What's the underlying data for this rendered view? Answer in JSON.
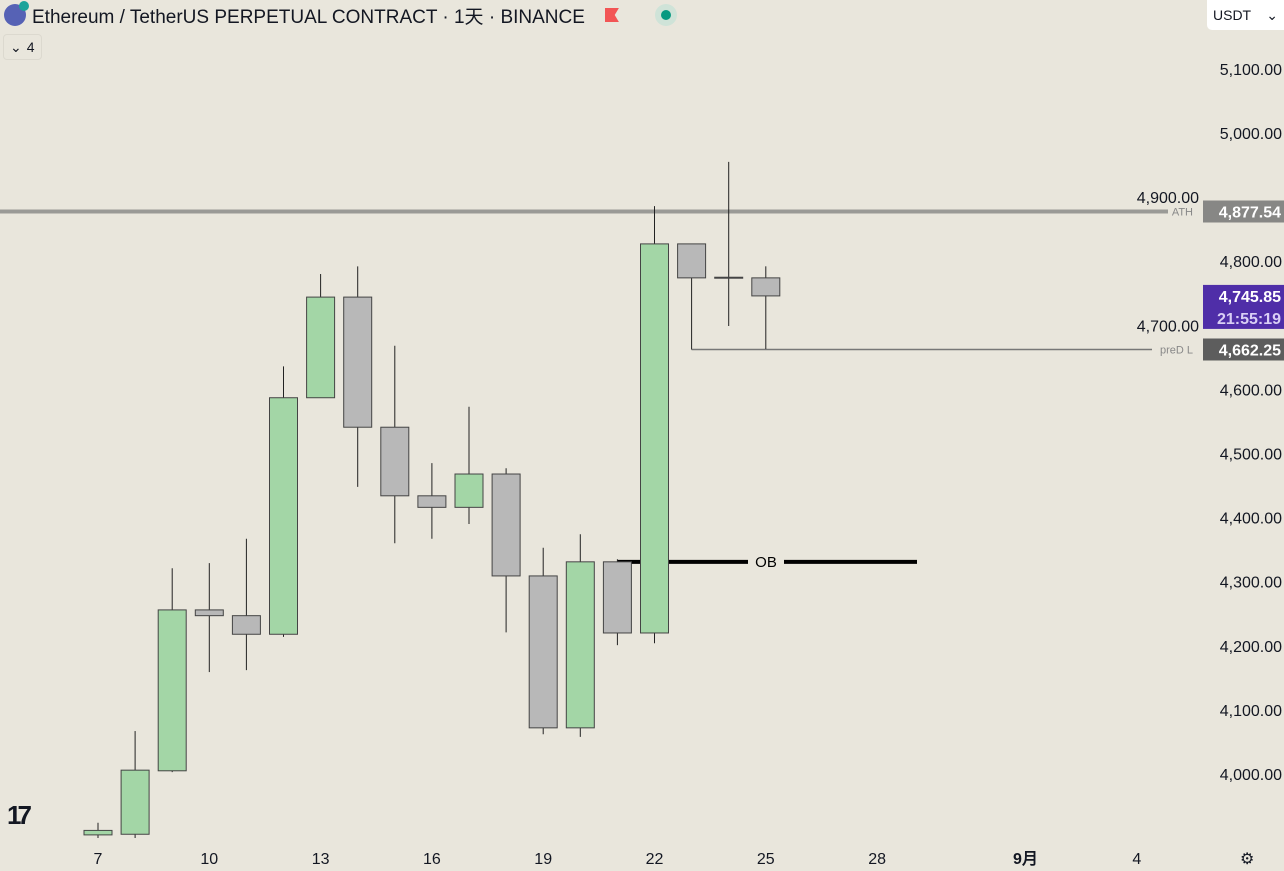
{
  "header": {
    "symbol_title": "Ethereum / TetherUS PERPETUAL CONTRACT · 1天 · BINANCE",
    "indicator_count": "4",
    "currency": "USDT"
  },
  "colors": {
    "up": "#a3d6a6",
    "down": "#b8b8b8",
    "current_price_bg": "#4f2ea8",
    "ath_line": "#9a9a96",
    "pred_low_bg": "#5d5d5d"
  },
  "chart_data": {
    "type": "candlestick",
    "x": [
      "7",
      "8",
      "9",
      "10",
      "11",
      "12",
      "13",
      "14",
      "15",
      "16",
      "17",
      "18",
      "19",
      "20",
      "21",
      "22",
      "23",
      "24",
      "25"
    ],
    "ohlc": [
      [
        3905,
        3912,
        3924,
        3890
      ],
      [
        3906,
        4006,
        4067,
        3900
      ],
      [
        4005,
        4256,
        4321,
        4003
      ],
      [
        4256,
        4247,
        4329,
        4159
      ],
      [
        4247,
        4218,
        4367,
        4162
      ],
      [
        4218,
        4587,
        4636,
        4214
      ],
      [
        4587,
        4744,
        4780,
        4602
      ],
      [
        4744,
        4541,
        4792,
        4448
      ],
      [
        4541,
        4434,
        4668,
        4360
      ],
      [
        4434,
        4416,
        4485,
        4367
      ],
      [
        4416,
        4468,
        4573,
        4390
      ],
      [
        4468,
        4309,
        4477,
        4221
      ],
      [
        4309,
        4072,
        4353,
        4062
      ],
      [
        4072,
        4331,
        4374,
        4058
      ],
      [
        4331,
        4220,
        4335,
        4201
      ],
      [
        4220,
        4827,
        4886,
        4204
      ],
      [
        4827,
        4774,
        4827,
        4662.25
      ],
      [
        4774,
        4775,
        4955,
        4699
      ],
      [
        4774,
        4745.85,
        4792,
        4663
      ]
    ],
    "ylim": [
      3860,
      5160
    ],
    "y_ticks": [
      "4,000.00",
      "4,100.00",
      "4,200.00",
      "4,300.00",
      "4,400.00",
      "4,500.00",
      "4,600.00",
      "4,700.00",
      "4,800.00",
      "4,900.00",
      "5,000.00",
      "5,100.00"
    ],
    "y_tick_values": [
      4000,
      4100,
      4200,
      4300,
      4400,
      4500,
      4600,
      4700,
      4800,
      4900,
      5000,
      5100
    ],
    "x_ticks": [
      {
        "label": "7",
        "day": 0
      },
      {
        "label": "10",
        "day": 3
      },
      {
        "label": "13",
        "day": 6
      },
      {
        "label": "16",
        "day": 9
      },
      {
        "label": "19",
        "day": 12
      },
      {
        "label": "22",
        "day": 15
      },
      {
        "label": "25",
        "day": 18
      },
      {
        "label": "28",
        "day": 21
      },
      {
        "label": "9月",
        "day": 25
      },
      {
        "label": "4",
        "day": 28
      }
    ],
    "lines": {
      "ath": {
        "label": "ATH",
        "value": 4877.54,
        "value_text": "4,877.54"
      },
      "pred_low": {
        "label": "preD L",
        "value": 4662.25,
        "value_text": "4,662.25",
        "from_day": 16
      },
      "ob": {
        "label": "OB",
        "value": 4331,
        "from_day": 14,
        "to_day": 22.5
      }
    },
    "current_price": {
      "value": 4745.85,
      "value_text": "4,745.85",
      "countdown": "21:55:19"
    }
  }
}
